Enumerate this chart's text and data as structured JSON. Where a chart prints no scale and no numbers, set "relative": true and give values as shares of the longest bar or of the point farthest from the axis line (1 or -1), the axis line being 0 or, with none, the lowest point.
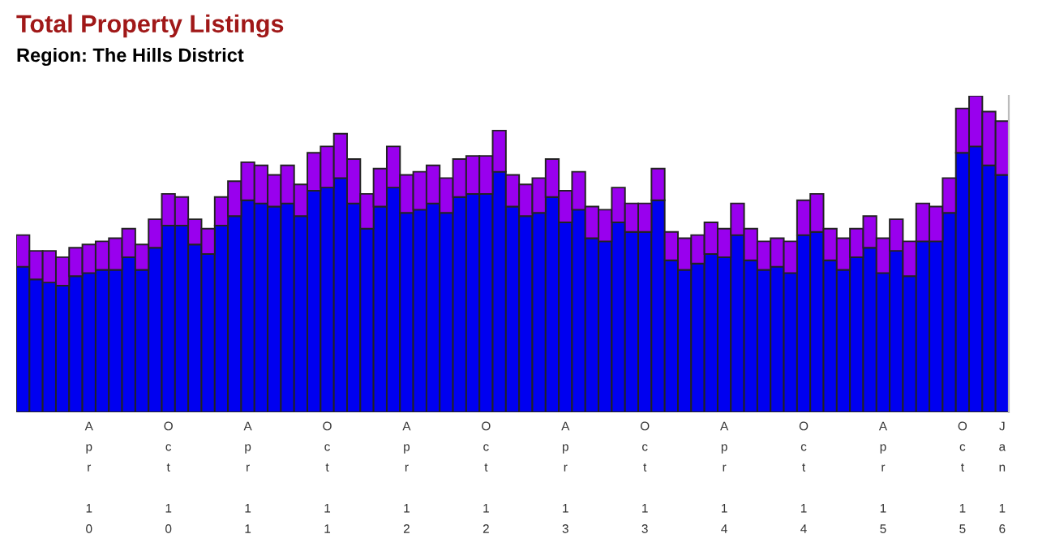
{
  "chart_data": {
    "type": "bar",
    "title": "Total Property Listings",
    "subtitle": "Region: The Hills District",
    "relative": true,
    "stacked": true,
    "legend": false,
    "grid": false,
    "categories": [
      null,
      null,
      null,
      null,
      null,
      "Apr 10",
      null,
      null,
      null,
      null,
      null,
      "Oct 10",
      null,
      null,
      null,
      null,
      null,
      "Apr 11",
      null,
      null,
      null,
      null,
      null,
      "Oct 11",
      null,
      null,
      null,
      null,
      null,
      "Apr 12",
      null,
      null,
      null,
      null,
      null,
      "Oct 12",
      null,
      null,
      null,
      null,
      null,
      "Apr 13",
      null,
      null,
      null,
      null,
      null,
      "Oct 13",
      null,
      null,
      null,
      null,
      null,
      "Apr 14",
      null,
      null,
      null,
      null,
      null,
      "Oct 14",
      null,
      null,
      null,
      null,
      null,
      "Apr 15",
      null,
      null,
      null,
      null,
      null,
      "Oct 15",
      null,
      null,
      "Jan 16"
    ],
    "series": [
      {
        "color": "#0000f0",
        "values": [
          0.46,
          0.42,
          0.41,
          0.4,
          0.43,
          0.44,
          0.45,
          0.45,
          0.49,
          0.45,
          0.52,
          0.59,
          0.59,
          0.53,
          0.5,
          0.59,
          0.62,
          0.67,
          0.66,
          0.65,
          0.66,
          0.62,
          0.7,
          0.71,
          0.74,
          0.66,
          0.58,
          0.65,
          0.71,
          0.63,
          0.64,
          0.66,
          0.63,
          0.68,
          0.69,
          0.69,
          0.76,
          0.65,
          0.62,
          0.63,
          0.68,
          0.6,
          0.64,
          0.55,
          0.54,
          0.6,
          0.57,
          0.57,
          0.67,
          0.48,
          0.45,
          0.47,
          0.5,
          0.49,
          0.56,
          0.48,
          0.45,
          0.46,
          0.44,
          0.56,
          0.57,
          0.48,
          0.45,
          0.49,
          0.52,
          0.44,
          0.51,
          0.43,
          0.54,
          0.54,
          0.63,
          0.82,
          0.84,
          0.78,
          0.75
        ]
      },
      {
        "color": "#9900ee",
        "values": [
          0.1,
          0.09,
          0.1,
          0.09,
          0.09,
          0.09,
          0.09,
          0.1,
          0.09,
          0.08,
          0.09,
          0.1,
          0.09,
          0.08,
          0.08,
          0.09,
          0.11,
          0.12,
          0.12,
          0.1,
          0.12,
          0.1,
          0.12,
          0.13,
          0.14,
          0.14,
          0.11,
          0.12,
          0.13,
          0.12,
          0.12,
          0.12,
          0.11,
          0.12,
          0.12,
          0.12,
          0.13,
          0.1,
          0.1,
          0.11,
          0.12,
          0.1,
          0.12,
          0.1,
          0.1,
          0.11,
          0.09,
          0.09,
          0.1,
          0.09,
          0.1,
          0.09,
          0.1,
          0.09,
          0.1,
          0.1,
          0.09,
          0.09,
          0.1,
          0.11,
          0.12,
          0.1,
          0.1,
          0.09,
          0.1,
          0.11,
          0.1,
          0.11,
          0.12,
          0.11,
          0.11,
          0.14,
          0.16,
          0.17,
          0.17
        ]
      }
    ]
  }
}
